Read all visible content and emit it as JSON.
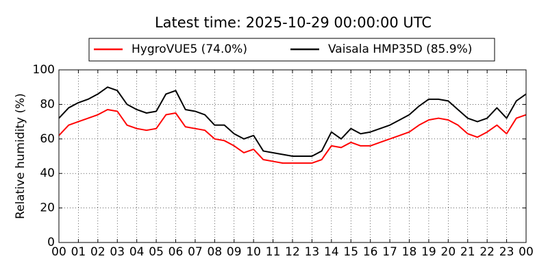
{
  "chart_data": {
    "type": "line",
    "title": "Latest time: 2025-10-29 00:00:00 UTC",
    "y_label": "Relative humidity (%)",
    "x": [
      0,
      0.5,
      1,
      1.5,
      2,
      2.5,
      3,
      3.5,
      4,
      4.5,
      5,
      5.5,
      6,
      6.5,
      7,
      7.5,
      8,
      8.5,
      9,
      9.5,
      10,
      10.5,
      11,
      11.5,
      12,
      12.5,
      13,
      13.5,
      14,
      14.5,
      15,
      15.5,
      16,
      16.5,
      17,
      17.5,
      18,
      18.5,
      19,
      19.5,
      20,
      20.5,
      21,
      21.5,
      22,
      22.5,
      23,
      23.5,
      24
    ],
    "series": [
      {
        "name": "HygroVUE5 (74.0%)",
        "color": "#ff0000",
        "values": [
          62,
          68,
          70,
          72,
          74,
          77,
          76,
          68,
          66,
          65,
          66,
          74,
          75,
          67,
          66,
          65,
          60,
          59,
          56,
          52,
          54,
          48,
          47,
          46,
          46,
          46,
          46,
          48,
          56,
          55,
          58,
          56,
          56,
          58,
          60,
          62,
          64,
          68,
          71,
          72,
          71,
          68,
          63,
          61,
          64,
          68,
          63,
          72,
          74
        ]
      },
      {
        "name": "Vaisala HMP35D (85.9%)",
        "color": "#000000",
        "values": [
          72,
          78,
          81,
          83,
          86,
          90,
          88,
          80,
          77,
          75,
          76,
          86,
          88,
          77,
          76,
          74,
          68,
          68,
          63,
          60,
          62,
          53,
          52,
          51,
          50,
          50,
          50,
          53,
          64,
          60,
          66,
          63,
          64,
          66,
          68,
          71,
          74,
          79,
          83,
          83,
          82,
          77,
          72,
          70,
          72,
          78,
          72,
          82,
          86
        ]
      }
    ],
    "xlim": [
      0,
      24
    ],
    "xticks": [
      {
        "value": 0,
        "label": "00"
      },
      {
        "value": 1,
        "label": "01"
      },
      {
        "value": 2,
        "label": "02"
      },
      {
        "value": 3,
        "label": "03"
      },
      {
        "value": 4,
        "label": "04"
      },
      {
        "value": 5,
        "label": "05"
      },
      {
        "value": 6,
        "label": "06"
      },
      {
        "value": 7,
        "label": "07"
      },
      {
        "value": 8,
        "label": "08"
      },
      {
        "value": 9,
        "label": "09"
      },
      {
        "value": 10,
        "label": "10"
      },
      {
        "value": 11,
        "label": "11"
      },
      {
        "value": 12,
        "label": "12"
      },
      {
        "value": 13,
        "label": "13"
      },
      {
        "value": 14,
        "label": "14"
      },
      {
        "value": 15,
        "label": "15"
      },
      {
        "value": 16,
        "label": "16"
      },
      {
        "value": 17,
        "label": "17"
      },
      {
        "value": 18,
        "label": "18"
      },
      {
        "value": 19,
        "label": "19"
      },
      {
        "value": 20,
        "label": "20"
      },
      {
        "value": 21,
        "label": "21"
      },
      {
        "value": 22,
        "label": "22"
      },
      {
        "value": 23,
        "label": "23"
      },
      {
        "value": 24,
        "label": "00"
      }
    ],
    "ylim": [
      0,
      100
    ],
    "yticks": [
      0,
      20,
      40,
      60,
      80,
      100
    ],
    "grid": true
  }
}
